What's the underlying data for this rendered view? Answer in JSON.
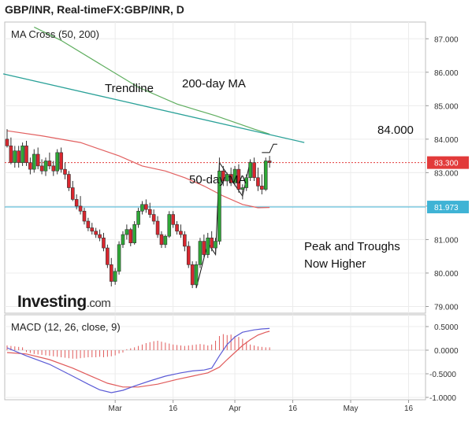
{
  "header": {
    "title": "GBP/INR, Real-timeFX:GBP/INR, D"
  },
  "brand": {
    "name": "Investing",
    "suffix": ".com"
  },
  "chart_data": [
    {
      "type": "candlestick",
      "panel_label": "MA Cross (50, 200)",
      "y_ticks": [
        "87.000",
        "86.000",
        "85.000",
        "84.000",
        "83.000",
        "82.000",
        "81.000",
        "80.000",
        "79.000"
      ],
      "y_tick_values": [
        87,
        86,
        85,
        84,
        83,
        82,
        81,
        80,
        79
      ],
      "ylim": [
        78.8,
        87.5
      ],
      "x_tick_labels": [
        "Mar",
        "16",
        "Apr",
        "16",
        "May",
        "16"
      ],
      "x_tick_days": [
        29,
        44,
        60,
        75,
        90,
        105
      ],
      "x_range": [
        1,
        110
      ],
      "x_unit": "days since Feb 1",
      "price_labels": [
        {
          "text": "83.300",
          "value": 83.3,
          "color": "#e23a3a"
        },
        {
          "text": "81.973",
          "value": 81.973,
          "color": "#3fb3d5"
        }
      ],
      "annotations": [
        {
          "id": "trendline",
          "text": "Trendline"
        },
        {
          "id": "ma200",
          "text": "200-day MA"
        },
        {
          "id": "ma50",
          "text": "50-day MA"
        },
        {
          "id": "level",
          "text": "84.000"
        },
        {
          "id": "peaks",
          "line1": "Peak and Troughs",
          "line2": "Now Higher"
        }
      ],
      "colors": {
        "up": "#2ea836",
        "down": "#d9262e",
        "ma50": "#e26060",
        "ma200": "#5fae5f",
        "trend": "#2aa198",
        "ref_hline": "#3fb3d5",
        "last_price": "#e23a3a"
      },
      "candles": [
        [
          1,
          84.0,
          84.3,
          83.75,
          83.8
        ],
        [
          2,
          83.8,
          84.05,
          83.25,
          83.3
        ],
        [
          3,
          83.3,
          83.8,
          83.15,
          83.65
        ],
        [
          4,
          83.65,
          83.8,
          83.15,
          83.3
        ],
        [
          5,
          83.3,
          83.9,
          83.2,
          83.8
        ],
        [
          6,
          83.8,
          83.95,
          83.2,
          83.3
        ],
        [
          7,
          83.3,
          83.45,
          82.95,
          83.1
        ],
        [
          8,
          83.1,
          83.7,
          83.0,
          83.55
        ],
        [
          9,
          83.55,
          83.75,
          83.1,
          83.2
        ],
        [
          10,
          83.2,
          83.4,
          82.95,
          83.05
        ],
        [
          11,
          83.05,
          83.45,
          82.9,
          83.35
        ],
        [
          12,
          83.35,
          83.6,
          83.1,
          83.2
        ],
        [
          13,
          83.2,
          83.35,
          82.9,
          83.05
        ],
        [
          14,
          83.05,
          83.7,
          82.95,
          83.6
        ],
        [
          15,
          83.6,
          83.75,
          83.0,
          83.1
        ],
        [
          16,
          83.1,
          83.3,
          82.8,
          82.95
        ],
        [
          17,
          82.95,
          83.05,
          82.45,
          82.55
        ],
        [
          18,
          82.55,
          82.75,
          82.15,
          82.2
        ],
        [
          19,
          82.2,
          82.35,
          81.9,
          82.0
        ],
        [
          20,
          82.0,
          82.3,
          81.75,
          81.85
        ],
        [
          21,
          81.85,
          81.95,
          81.45,
          81.55
        ],
        [
          22,
          81.55,
          81.65,
          81.25,
          81.35
        ],
        [
          23,
          81.35,
          81.5,
          81.15,
          81.25
        ],
        [
          24,
          81.25,
          81.35,
          81.05,
          81.15
        ],
        [
          25,
          81.15,
          81.3,
          80.95,
          81.05
        ],
        [
          26,
          81.05,
          81.2,
          80.65,
          80.75
        ],
        [
          27,
          80.75,
          80.85,
          80.15,
          80.25
        ],
        [
          28,
          80.25,
          80.45,
          79.6,
          79.75
        ],
        [
          29,
          79.75,
          80.15,
          79.65,
          80.05
        ],
        [
          30,
          80.05,
          80.95,
          79.95,
          80.85
        ],
        [
          31,
          80.85,
          81.25,
          80.75,
          81.15
        ],
        [
          32,
          81.15,
          81.45,
          81.0,
          81.3
        ],
        [
          33,
          81.3,
          81.35,
          80.8,
          80.9
        ],
        [
          34,
          80.9,
          81.55,
          80.85,
          81.45
        ],
        [
          35,
          81.45,
          81.95,
          81.35,
          81.85
        ],
        [
          36,
          81.85,
          82.15,
          81.75,
          82.05
        ],
        [
          37,
          82.05,
          82.2,
          81.8,
          81.9
        ],
        [
          38,
          81.9,
          82.1,
          81.65,
          81.75
        ],
        [
          39,
          81.75,
          81.9,
          81.45,
          81.55
        ],
        [
          40,
          81.55,
          81.7,
          81.05,
          81.15
        ],
        [
          41,
          81.15,
          81.25,
          80.75,
          80.85
        ],
        [
          42,
          80.85,
          81.15,
          80.75,
          81.1
        ],
        [
          43,
          81.1,
          81.85,
          81.05,
          81.75
        ],
        [
          44,
          81.75,
          81.85,
          81.35,
          81.45
        ],
        [
          45,
          81.45,
          81.55,
          81.15,
          81.25
        ],
        [
          46,
          81.25,
          81.45,
          81.05,
          81.15
        ],
        [
          47,
          81.15,
          81.25,
          80.65,
          80.8
        ],
        [
          48,
          80.8,
          80.95,
          80.15,
          80.25
        ],
        [
          49,
          80.25,
          80.35,
          79.55,
          79.65
        ],
        [
          50,
          79.65,
          80.35,
          79.55,
          80.25
        ],
        [
          51,
          80.25,
          81.05,
          80.15,
          80.95
        ],
        [
          52,
          80.95,
          81.15,
          80.45,
          80.55
        ],
        [
          53,
          80.55,
          81.2,
          80.45,
          81.05
        ],
        [
          54,
          81.05,
          81.25,
          80.65,
          80.75
        ],
        [
          55,
          80.75,
          81.05,
          80.55,
          80.95
        ],
        [
          56,
          80.95,
          83.45,
          80.85,
          83.05
        ],
        [
          57,
          83.05,
          83.2,
          82.6,
          82.75
        ],
        [
          58,
          82.75,
          83.0,
          82.6,
          82.95
        ],
        [
          59,
          82.95,
          83.15,
          82.6,
          82.7
        ],
        [
          60,
          82.7,
          83.2,
          82.6,
          83.1
        ],
        [
          61,
          83.1,
          83.25,
          82.4,
          82.5
        ],
        [
          62,
          82.5,
          82.65,
          82.2,
          82.55
        ],
        [
          63,
          82.55,
          82.95,
          82.45,
          82.85
        ],
        [
          64,
          82.85,
          83.4,
          82.75,
          83.3
        ],
        [
          65,
          83.3,
          83.45,
          82.75,
          82.85
        ],
        [
          66,
          82.85,
          83.15,
          82.45,
          82.6
        ],
        [
          67,
          82.6,
          82.95,
          82.35,
          82.5
        ],
        [
          68,
          82.5,
          83.45,
          82.45,
          83.35
        ],
        [
          69,
          83.35,
          83.5,
          83.15,
          83.3
        ]
      ],
      "ma50": [
        [
          1,
          84.25
        ],
        [
          10,
          84.1
        ],
        [
          20,
          83.9
        ],
        [
          30,
          83.5
        ],
        [
          36,
          83.2
        ],
        [
          42,
          83.05
        ],
        [
          47,
          82.85
        ],
        [
          52,
          82.6
        ],
        [
          57,
          82.3
        ],
        [
          62,
          82.05
        ],
        [
          66,
          81.95
        ],
        [
          69,
          81.96
        ]
      ],
      "ma200": [
        [
          8,
          87.35
        ],
        [
          15,
          86.95
        ],
        [
          25,
          86.25
        ],
        [
          35,
          85.55
        ],
        [
          45,
          85.05
        ],
        [
          55,
          84.7
        ],
        [
          65,
          84.3
        ],
        [
          69,
          84.15
        ]
      ],
      "trendline": [
        [
          0,
          85.95
        ],
        [
          78,
          83.9
        ]
      ],
      "zigzag": [
        [
          50,
          79.55
        ],
        [
          53,
          80.9
        ],
        [
          55,
          80.55
        ],
        [
          56,
          83.3
        ],
        [
          62,
          82.3
        ],
        [
          64,
          83.35
        ]
      ],
      "bracket": [
        [
          67,
          83.6
        ],
        [
          69,
          83.6
        ],
        [
          70,
          83.85
        ],
        [
          71,
          83.85
        ]
      ]
    },
    {
      "type": "macd",
      "panel_label": "MACD (12, 26, close, 9)",
      "y_ticks": [
        "0.5000",
        "0.0000",
        "-0.5000",
        "-1.0000"
      ],
      "y_tick_values": [
        0.5,
        0,
        -0.5,
        -1.0
      ],
      "ylim": [
        -1.05,
        0.75
      ],
      "colors": {
        "macd": "#5b5bd6",
        "signal": "#e05a5a",
        "hist": "#e05a5a"
      },
      "macd": [
        [
          1,
          0.05
        ],
        [
          6,
          -0.12
        ],
        [
          12,
          -0.3
        ],
        [
          18,
          -0.55
        ],
        [
          22,
          -0.72
        ],
        [
          25,
          -0.84
        ],
        [
          28,
          -0.9
        ],
        [
          31,
          -0.85
        ],
        [
          34,
          -0.76
        ],
        [
          38,
          -0.65
        ],
        [
          42,
          -0.55
        ],
        [
          46,
          -0.48
        ],
        [
          49,
          -0.44
        ],
        [
          52,
          -0.42
        ],
        [
          54,
          -0.38
        ],
        [
          56,
          -0.12
        ],
        [
          58,
          0.12
        ],
        [
          60,
          0.28
        ],
        [
          62,
          0.38
        ],
        [
          65,
          0.43
        ],
        [
          67,
          0.45
        ],
        [
          69,
          0.46
        ]
      ],
      "signal": [
        [
          1,
          -0.05
        ],
        [
          6,
          -0.08
        ],
        [
          12,
          -0.2
        ],
        [
          18,
          -0.38
        ],
        [
          23,
          -0.56
        ],
        [
          27,
          -0.7
        ],
        [
          31,
          -0.78
        ],
        [
          35,
          -0.78
        ],
        [
          40,
          -0.72
        ],
        [
          45,
          -0.62
        ],
        [
          49,
          -0.55
        ],
        [
          53,
          -0.48
        ],
        [
          56,
          -0.36
        ],
        [
          58,
          -0.2
        ],
        [
          60,
          -0.05
        ],
        [
          62,
          0.1
        ],
        [
          64,
          0.22
        ],
        [
          66,
          0.32
        ],
        [
          68,
          0.38
        ],
        [
          69,
          0.4
        ]
      ],
      "hist": [
        [
          1,
          0.1
        ],
        [
          2,
          0.09
        ],
        [
          3,
          0.08
        ],
        [
          4,
          0.07
        ],
        [
          5,
          0.06
        ],
        [
          6,
          -0.04
        ],
        [
          7,
          -0.06
        ],
        [
          8,
          -0.08
        ],
        [
          9,
          -0.09
        ],
        [
          10,
          -0.1
        ],
        [
          11,
          -0.11
        ],
        [
          12,
          -0.12
        ],
        [
          13,
          -0.13
        ],
        [
          14,
          -0.14
        ],
        [
          15,
          -0.15
        ],
        [
          16,
          -0.16
        ],
        [
          17,
          -0.17
        ],
        [
          18,
          -0.18
        ],
        [
          19,
          -0.18
        ],
        [
          20,
          -0.17
        ],
        [
          21,
          -0.16
        ],
        [
          22,
          -0.15
        ],
        [
          23,
          -0.15
        ],
        [
          24,
          -0.15
        ],
        [
          25,
          -0.14
        ],
        [
          26,
          -0.15
        ],
        [
          27,
          -0.14
        ],
        [
          28,
          -0.13
        ],
        [
          29,
          -0.11
        ],
        [
          30,
          -0.07
        ],
        [
          31,
          -0.05
        ],
        [
          32,
          0.02
        ],
        [
          33,
          0.04
        ],
        [
          34,
          0.06
        ],
        [
          35,
          0.09
        ],
        [
          36,
          0.12
        ],
        [
          37,
          0.15
        ],
        [
          38,
          0.17
        ],
        [
          39,
          0.19
        ],
        [
          40,
          0.2
        ],
        [
          41,
          0.18
        ],
        [
          42,
          0.16
        ],
        [
          43,
          0.14
        ],
        [
          44,
          0.12
        ],
        [
          45,
          0.11
        ],
        [
          46,
          0.1
        ],
        [
          47,
          0.09
        ],
        [
          48,
          0.1
        ],
        [
          49,
          0.11
        ],
        [
          50,
          0.12
        ],
        [
          51,
          0.13
        ],
        [
          52,
          0.12
        ],
        [
          53,
          0.1
        ],
        [
          54,
          0.12
        ],
        [
          55,
          0.2
        ],
        [
          56,
          0.3
        ],
        [
          57,
          0.34
        ],
        [
          58,
          0.32
        ],
        [
          59,
          0.33
        ],
        [
          60,
          0.3
        ],
        [
          61,
          0.28
        ],
        [
          62,
          0.24
        ],
        [
          63,
          0.18
        ],
        [
          64,
          0.12
        ],
        [
          65,
          0.1
        ],
        [
          66,
          0.08
        ],
        [
          67,
          0.07
        ],
        [
          68,
          0.06
        ],
        [
          69,
          0.06
        ]
      ]
    }
  ]
}
